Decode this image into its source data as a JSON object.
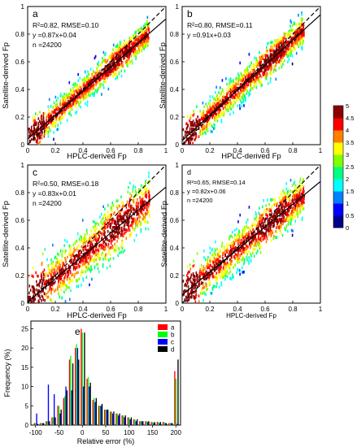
{
  "panels": [
    {
      "letter": "a",
      "stats": [
        "R²=0.82, RMSE=0.10",
        "y =0.87x+0.04",
        "n =24200"
      ],
      "xlabel": "HPLC-derived Fp",
      "ylabel": "Satellite-derived Fp",
      "xticks": [
        "0",
        "0.2",
        "0.4",
        "0.6",
        "0.8",
        "1"
      ],
      "yticks": [
        "0",
        "0.2",
        "0.4",
        "0.6",
        "0.8",
        "1"
      ]
    },
    {
      "letter": "b",
      "stats": [
        "R²=0.80, RMSE=0.11",
        "y =0.91x+0.03"
      ],
      "xlabel": "HPLC-derived Fp",
      "ylabel": "Satellite-derived Fp",
      "xticks": [
        "0",
        "0.2",
        "0.4",
        "0.6",
        "0.8",
        "1"
      ],
      "yticks": [
        "0",
        "0.2",
        "0.4",
        "0.6",
        "0.8",
        "1"
      ]
    },
    {
      "letter": "c",
      "stats": [
        "R²=0.50, RMSE=0.18",
        "y =0.83x+0.01",
        "n =24200"
      ],
      "xlabel": "HPLC-derived Fp",
      "ylabel": "Satellite-derived Fp",
      "xticks": [
        "0",
        "0.2",
        "0.4",
        "0.6",
        "0.8",
        "1"
      ],
      "yticks": [
        "0",
        "0.2",
        "0.4",
        "0.6",
        "0.8",
        "1"
      ]
    },
    {
      "letter": "d",
      "stats": [
        "R²=0.65, RMSE=0.14",
        "y =0.82x+0.06",
        "n =24200"
      ],
      "xlabel": "HPLC-derived Fp",
      "ylabel": "Satellite-derived Fp",
      "xticks": [
        "0",
        "0.2",
        "0.4",
        "0.6",
        "0.8",
        "1"
      ],
      "yticks": [
        "0",
        "0.2",
        "0.4",
        "0.6",
        "0.8",
        "1"
      ]
    }
  ],
  "colorbar": {
    "ticks": [
      "5",
      "4.5",
      "4",
      "3.5",
      "3",
      "2.5",
      "2",
      "1.5",
      "1",
      "0.5",
      "0"
    ],
    "colors": [
      "#00008b",
      "#0000ff",
      "#0080ff",
      "#00ffff",
      "#00ff80",
      "#80ff00",
      "#ffff00",
      "#ff8000",
      "#ff0000",
      "#8b0000"
    ]
  },
  "colors": {
    "a": "#ff0000",
    "b": "#00ff00",
    "c": "#0000ff",
    "d": "#000000"
  },
  "histogram": {
    "letter": "e",
    "xlabel": "Relative error (%)",
    "ylabel": "Frequency (%)",
    "xticks": [
      "-100",
      "-50",
      "0",
      "50",
      "100",
      "150",
      "200"
    ],
    "yticks": [
      "0",
      "5",
      "10",
      "15",
      "20",
      "25"
    ]
  },
  "chart_data": [
    {
      "type": "scatter",
      "title": "a",
      "xlabel": "HPLC-derived Fp",
      "ylabel": "Satellite-derived Fp",
      "xlim": [
        0,
        1
      ],
      "ylim": [
        0,
        1
      ],
      "fit": {
        "slope": 0.87,
        "intercept": 0.04
      },
      "one_to_one": true,
      "n": 24200
    },
    {
      "type": "scatter",
      "title": "b",
      "xlabel": "HPLC-derived Fp",
      "ylabel": "Satellite-derived Fp",
      "xlim": [
        0,
        1
      ],
      "ylim": [
        0,
        1
      ],
      "fit": {
        "slope": 0.91,
        "intercept": 0.03
      },
      "one_to_one": true
    },
    {
      "type": "scatter",
      "title": "c",
      "xlabel": "HPLC-derived Fp",
      "ylabel": "Satellite-derived Fp",
      "xlim": [
        0,
        1
      ],
      "ylim": [
        0,
        1
      ],
      "fit": {
        "slope": 0.83,
        "intercept": 0.01
      },
      "one_to_one": true,
      "n": 24200
    },
    {
      "type": "scatter",
      "title": "d",
      "xlabel": "HPLC-derived Fp",
      "ylabel": "Satellite-derived Fp",
      "xlim": [
        0,
        1
      ],
      "ylim": [
        0,
        1
      ],
      "fit": {
        "slope": 0.82,
        "intercept": 0.06
      },
      "one_to_one": true,
      "n": 24200
    },
    {
      "type": "bar",
      "title": "e",
      "xlabel": "Relative error (%)",
      "ylabel": "Frequency (%)",
      "xlim": [
        -110,
        210
      ],
      "ylim": [
        0,
        27
      ],
      "categories": [
        -100,
        -87.5,
        -75,
        -62.5,
        -50,
        -37.5,
        -25,
        -12.5,
        0,
        12.5,
        25,
        37.5,
        50,
        62.5,
        75,
        87.5,
        100,
        112.5,
        125,
        137.5,
        150,
        162.5,
        175,
        187.5,
        200
      ],
      "series": [
        {
          "name": "a",
          "values": [
            0.5,
            0.5,
            1,
            2,
            5,
            7,
            17,
            20,
            25,
            12,
            6.5,
            5,
            4,
            3.5,
            3,
            2.5,
            2,
            1.5,
            1,
            1,
            0.8,
            0.8,
            0.8,
            0.5,
            14
          ]
        },
        {
          "name": "b",
          "values": [
            0.5,
            0.5,
            1,
            2,
            5,
            7.5,
            18,
            21,
            24,
            12.5,
            7,
            5,
            4,
            3.5,
            3,
            2.5,
            2,
            1.5,
            1,
            1,
            0.8,
            0.8,
            0.8,
            0.5,
            12
          ]
        },
        {
          "name": "c",
          "values": [
            3,
            0.5,
            10.5,
            8,
            3,
            10,
            9,
            20,
            10,
            10,
            6,
            5,
            4,
            3,
            2.5,
            2,
            1.5,
            1,
            1,
            0.8,
            0.5,
            0.5,
            0.5,
            0.5,
            0.3
          ]
        },
        {
          "name": "d",
          "values": [
            0.3,
            0.5,
            1,
            2,
            4,
            9,
            16,
            17,
            24,
            11,
            7,
            5.5,
            4,
            3.5,
            3,
            2.5,
            2,
            1.5,
            1,
            1,
            0.8,
            0.8,
            0.5,
            0.5,
            17
          ]
        }
      ]
    }
  ]
}
